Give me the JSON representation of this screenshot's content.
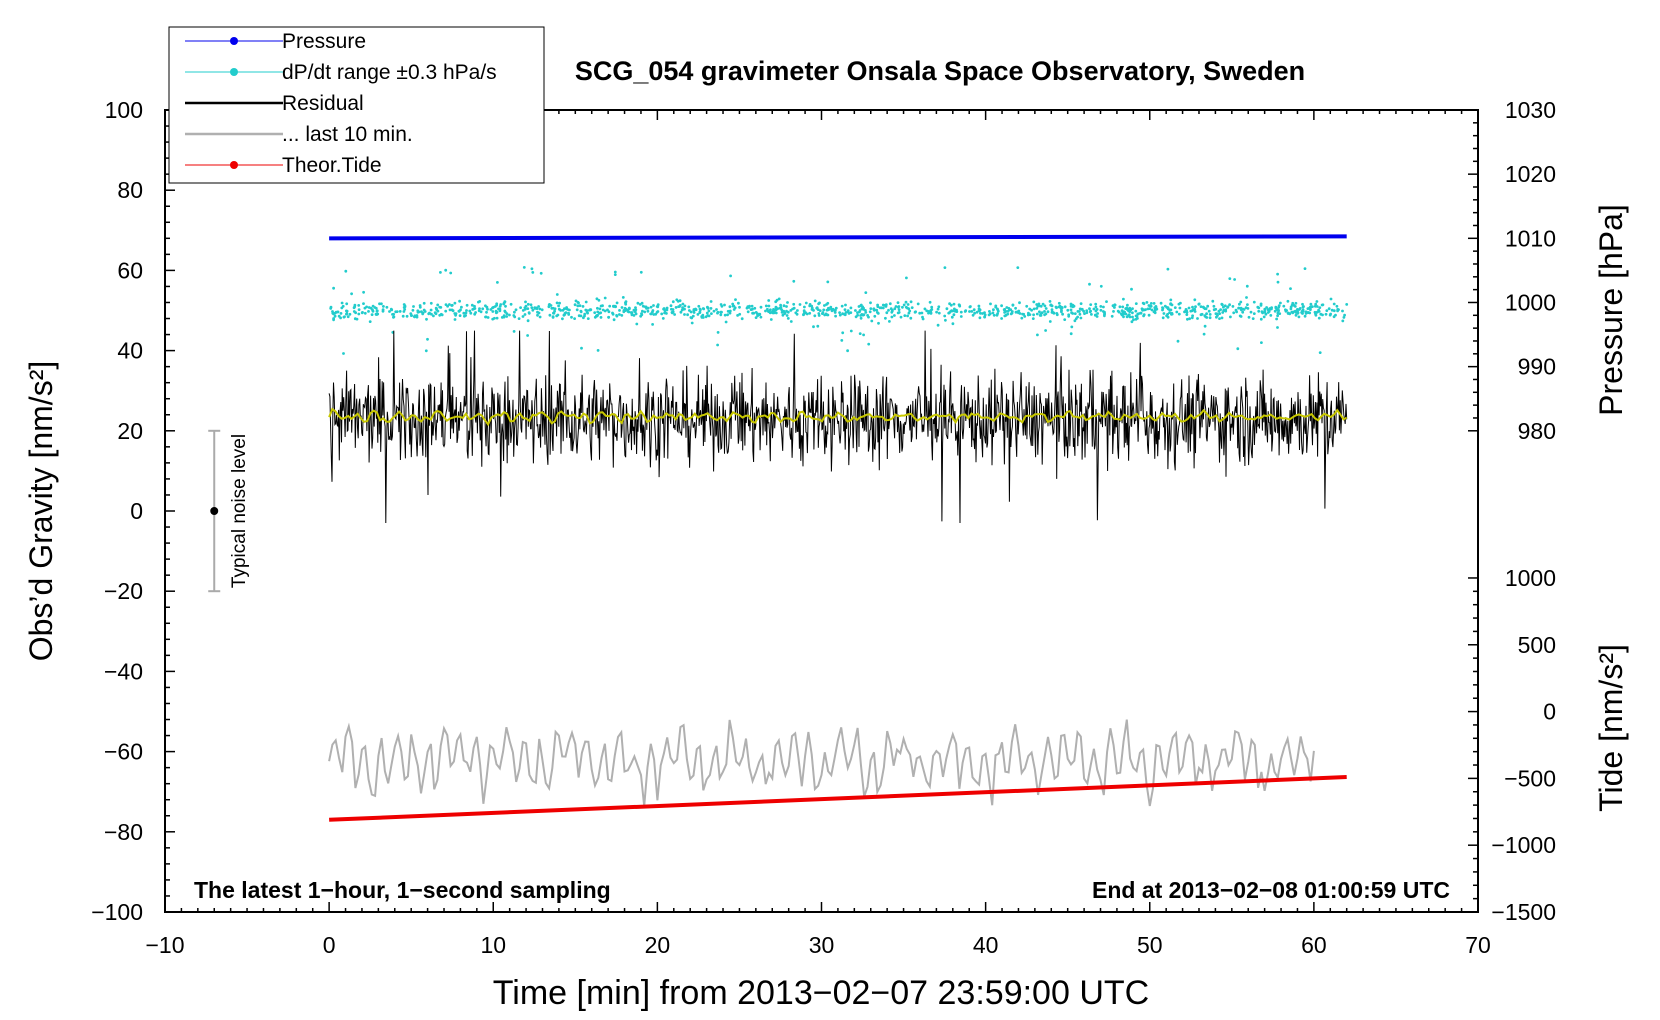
{
  "chart_data": {
    "type": "line",
    "title": "SCG_054 gravimeter Onsala Space Observatory, Sweden",
    "xlabel": "Time [min] from 2013−02−07 23:59:00 UTC",
    "ylabel_left": "Obs’d Gravity [nm/s²]",
    "ylabel_right_pressure": "Pressure [hPa]",
    "ylabel_right_tide": "Tide [nm/s²]",
    "xlim": [
      -10,
      70
    ],
    "ylim_left": [
      -100,
      100
    ],
    "pressure_axis_range": [
      980,
      1030
    ],
    "tide_axis_range": [
      -1500,
      1000
    ],
    "x_ticks": [
      "−10",
      "0",
      "10",
      "20",
      "30",
      "40",
      "50",
      "60",
      "70"
    ],
    "y_ticks_left": [
      "−100",
      "−80",
      "−60",
      "−40",
      "−20",
      "0",
      "20",
      "40",
      "60",
      "80",
      "100"
    ],
    "pressure_ticks": [
      "980",
      "990",
      "1000",
      "1010",
      "1020",
      "1030"
    ],
    "tide_ticks": [
      "−1500",
      "−1000",
      "−500",
      "0",
      "500",
      "1000"
    ],
    "legend": [
      {
        "label": "Pressure",
        "color": "#0000ee",
        "marker": "dot"
      },
      {
        "label": "dP/dt range ±0.3 hPa/s",
        "color": "#22cccc",
        "marker": "dot"
      },
      {
        "label": "Residual",
        "color": "#000000",
        "marker": "line"
      },
      {
        "label": "... last 10 min.",
        "color": "#b0b0b0",
        "marker": "line"
      },
      {
        "label": "Theor.Tide",
        "color": "#ee0000",
        "marker": "dot"
      }
    ],
    "series": [
      {
        "name": "Pressure",
        "axis": "pressure",
        "unit": "hPa",
        "x": [
          0,
          62
        ],
        "values": [
          1010.0,
          1010.3
        ]
      },
      {
        "name": "dP/dt range",
        "axis": "left",
        "center_value": 50,
        "spread": 3
      },
      {
        "name": "Residual",
        "axis": "left",
        "center_value": 23,
        "min": -3,
        "max": 45
      },
      {
        "name": "Residual (smoothed)",
        "axis": "left",
        "center_value": 23.5
      },
      {
        "name": "... last 10 min.",
        "axis": "left",
        "center_value": -62,
        "min": -80,
        "max": -47
      },
      {
        "name": "Theor.Tide",
        "axis": "tide",
        "unit": "nm/s²",
        "x": [
          0,
          62
        ],
        "values": [
          -810,
          -490
        ]
      }
    ],
    "noise_bar": {
      "label": "Typical noise level",
      "x": -7,
      "center": 0,
      "low": -20,
      "high": 20
    },
    "annotation_left": "The latest 1−hour, 1−second sampling",
    "annotation_right": "End at 2013−02−08 01:00:59 UTC",
    "colors": {
      "pressure": "#0000ee",
      "dpdt": "#22cccc",
      "residual": "#000000",
      "smoothed": "#c8c800",
      "last10": "#b0b0b0",
      "tide": "#ee0000"
    }
  }
}
